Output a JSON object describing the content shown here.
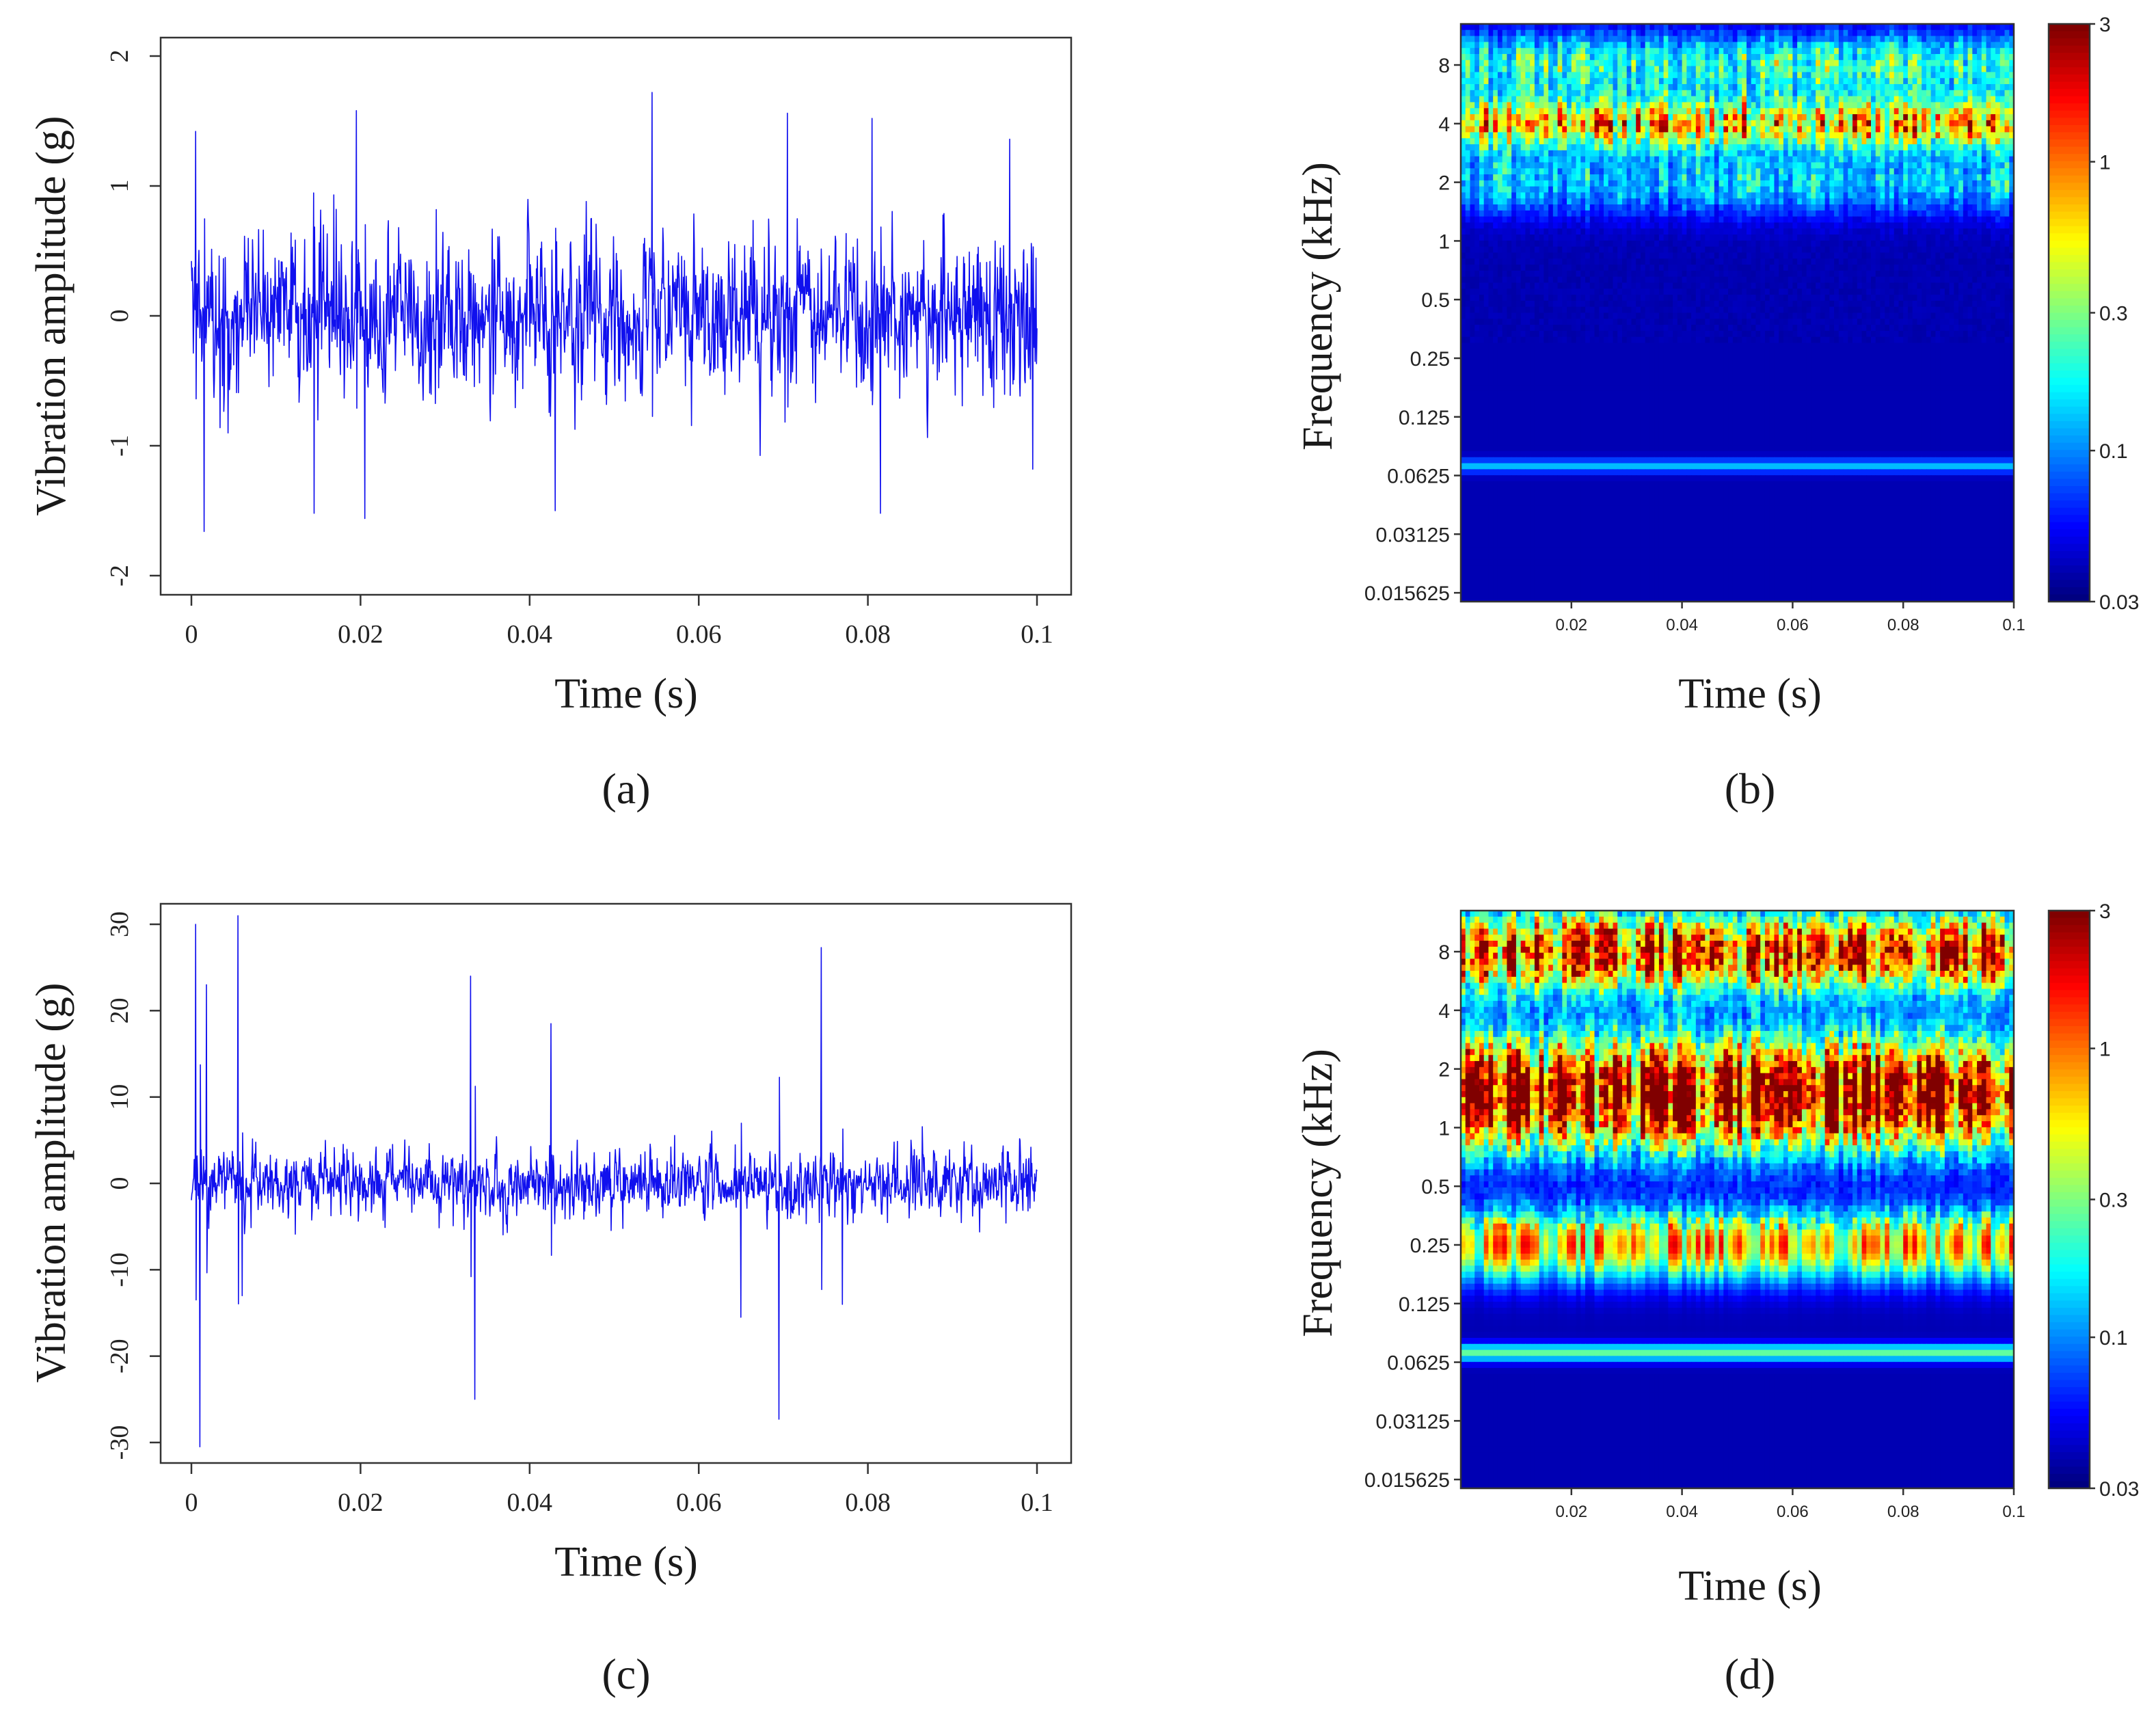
{
  "chart_data": [
    {
      "id": "a",
      "type": "line",
      "caption": "(a)",
      "xlabel": "Time (s)",
      "ylabel": "Vibration amplitude (g)",
      "xlim": [
        0,
        0.1
      ],
      "ylim": [
        -2,
        2
      ],
      "xticks": [
        "0",
        "0.02",
        "0.04",
        "0.06",
        "0.08",
        "0.1"
      ],
      "yticks": [
        "-2",
        "-1",
        "0",
        "1",
        "2"
      ],
      "color": "#1010ee",
      "samples": 1800,
      "noise_std": 0.42,
      "peak_max": 1.72,
      "peak_min": -1.68,
      "seed": 7,
      "spikes": [
        {
          "t": 0.0005,
          "a": 1.42
        },
        {
          "t": 0.0015,
          "a": -1.66
        },
        {
          "t": 0.0195,
          "a": 1.58
        },
        {
          "t": 0.0205,
          "a": -1.56
        },
        {
          "t": 0.0545,
          "a": 1.72
        },
        {
          "t": 0.0705,
          "a": 1.56
        },
        {
          "t": 0.0815,
          "a": -1.52
        },
        {
          "t": 0.0805,
          "a": 1.52
        },
        {
          "t": 0.0145,
          "a": -1.52
        },
        {
          "t": 0.043,
          "a": -1.5
        },
        {
          "t": 0.0968,
          "a": 1.36
        },
        {
          "t": 0.0995,
          "a": -1.18
        }
      ]
    },
    {
      "id": "b",
      "type": "heatmap",
      "caption": "(b)",
      "xlabel": "Time (s)",
      "ylabel": "Frequency (kHz)",
      "xticks": [
        "0.02",
        "0.04",
        "0.06",
        "0.08",
        "0.1"
      ],
      "yticks": [
        "8",
        "4",
        "2",
        "1",
        "0.5",
        "0.25",
        "0.125",
        "0.0625",
        "0.03125",
        "0.015625"
      ],
      "colorbar_ticks": [
        "3",
        "1",
        "0.3",
        "0.1",
        "0.03"
      ],
      "colormap": "jet",
      "bands": [
        {
          "freq_khz": 4,
          "intensity": 0.62,
          "spread_octaves": 0.45
        },
        {
          "freq_khz": 8,
          "intensity": 0.38,
          "spread_octaves": 0.55
        },
        {
          "freq_khz": 2,
          "intensity": 0.28,
          "spread_octaves": 0.55
        },
        {
          "freq_khz": 0.07,
          "intensity": 0.26,
          "spread_octaves": 0.12
        }
      ],
      "seed": 11
    },
    {
      "id": "c",
      "type": "line",
      "caption": "(c)",
      "xlabel": "Time (s)",
      "ylabel": "Vibration amplitude (g)",
      "xlim": [
        0,
        0.1
      ],
      "ylim": [
        -30,
        30
      ],
      "xticks": [
        "0",
        "0.02",
        "0.04",
        "0.06",
        "0.08",
        "0.1"
      ],
      "yticks": [
        "-30",
        "-20",
        "-10",
        "0",
        "10",
        "20",
        "30"
      ],
      "color": "#1010ee",
      "samples": 1800,
      "noise_std": 2.6,
      "peak_max": 31,
      "peak_min": -30.5,
      "seed": 23,
      "spikes": [
        {
          "t": 0.0005,
          "a": 30
        },
        {
          "t": 0.001,
          "a": -30.5
        },
        {
          "t": 0.0018,
          "a": 23
        },
        {
          "t": 0.0055,
          "a": 31
        },
        {
          "t": 0.006,
          "a": -13
        },
        {
          "t": 0.033,
          "a": 24
        },
        {
          "t": 0.0335,
          "a": -25
        },
        {
          "t": 0.0425,
          "a": 18.5
        },
        {
          "t": 0.0695,
          "a": -27.3
        },
        {
          "t": 0.0745,
          "a": 27.3
        },
        {
          "t": 0.065,
          "a": -15.5
        },
        {
          "t": 0.077,
          "a": -14
        }
      ]
    },
    {
      "id": "d",
      "type": "heatmap",
      "caption": "(d)",
      "xlabel": "Time (s)",
      "ylabel": "Frequency (kHz)",
      "xticks": [
        "0.02",
        "0.04",
        "0.06",
        "0.08",
        "0.1"
      ],
      "yticks": [
        "8",
        "4",
        "2",
        "1",
        "0.5",
        "0.25",
        "0.125",
        "0.0625",
        "0.03125",
        "0.015625"
      ],
      "colorbar_ticks": [
        "3",
        "1",
        "0.3",
        "0.1",
        "0.03"
      ],
      "colormap": "jet",
      "bands": [
        {
          "freq_khz": 1.5,
          "intensity": 0.95,
          "spread_octaves": 1.0
        },
        {
          "freq_khz": 8,
          "intensity": 0.8,
          "spread_octaves": 0.7
        },
        {
          "freq_khz": 0.25,
          "intensity": 0.62,
          "spread_octaves": 0.6
        },
        {
          "freq_khz": 0.07,
          "intensity": 0.42,
          "spread_octaves": 0.15
        }
      ],
      "seed": 29
    }
  ]
}
